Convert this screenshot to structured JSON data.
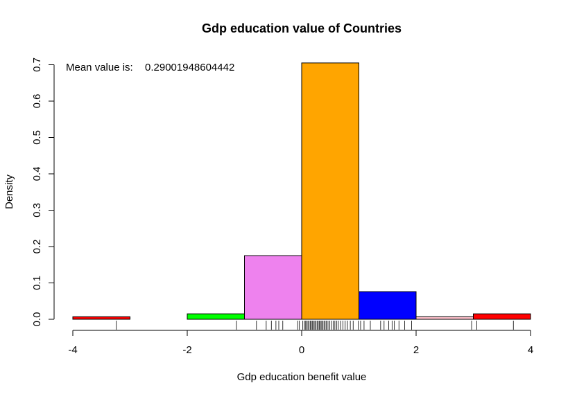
{
  "chart_data": {
    "type": "histogram",
    "title": "Gdp education value of Countries",
    "xlabel": "Gdp education benefit value",
    "ylabel": "Density",
    "xlim": [
      -4,
      4
    ],
    "ylim": [
      0,
      0.7
    ],
    "x_ticks": [
      -4,
      -2,
      0,
      2,
      4
    ],
    "x_tick_labels": [
      "-4",
      "-2",
      "0",
      "2",
      "4"
    ],
    "y_ticks": [
      0,
      0.1,
      0.2,
      0.3,
      0.4,
      0.5,
      0.6,
      0.7
    ],
    "y_tick_labels": [
      "0.0",
      "0.1",
      "0.2",
      "0.3",
      "0.4",
      "0.5",
      "0.6",
      "0.7"
    ],
    "bins": [
      {
        "start": -4,
        "end": -3,
        "density": 0.007,
        "color": "#ff0000"
      },
      {
        "start": -3,
        "end": -2,
        "density": 0.0,
        "color": "#ffffff"
      },
      {
        "start": -2,
        "end": -1,
        "density": 0.015,
        "color": "#00ff00"
      },
      {
        "start": -1,
        "end": 0,
        "density": 0.175,
        "color": "#ee82ee"
      },
      {
        "start": 0,
        "end": 1,
        "density": 0.705,
        "color": "#ffa500"
      },
      {
        "start": 1,
        "end": 2,
        "density": 0.076,
        "color": "#0000ff"
      },
      {
        "start": 2,
        "end": 3,
        "density": 0.007,
        "color": "#ffc0cb"
      },
      {
        "start": 3,
        "end": 4,
        "density": 0.015,
        "color": "#ff0000"
      }
    ],
    "rug": [
      -3.24,
      -1.14,
      -0.79,
      -0.62,
      -0.53,
      -0.45,
      -0.4,
      -0.33,
      -0.07,
      -0.04,
      0.02,
      0.05,
      0.07,
      0.09,
      0.11,
      0.13,
      0.15,
      0.17,
      0.19,
      0.21,
      0.23,
      0.25,
      0.27,
      0.29,
      0.31,
      0.33,
      0.35,
      0.37,
      0.39,
      0.41,
      0.43,
      0.46,
      0.49,
      0.52,
      0.55,
      0.58,
      0.61,
      0.64,
      0.68,
      0.72,
      0.76,
      0.8,
      0.85,
      0.9,
      0.99,
      1.03,
      1.09,
      1.2,
      1.38,
      1.44,
      1.52,
      1.58,
      1.62,
      1.7,
      1.8,
      1.92,
      2.97,
      3.06,
      3.7
    ],
    "annotation": {
      "label": "Mean value is:",
      "value": "0.29001948604442"
    }
  }
}
